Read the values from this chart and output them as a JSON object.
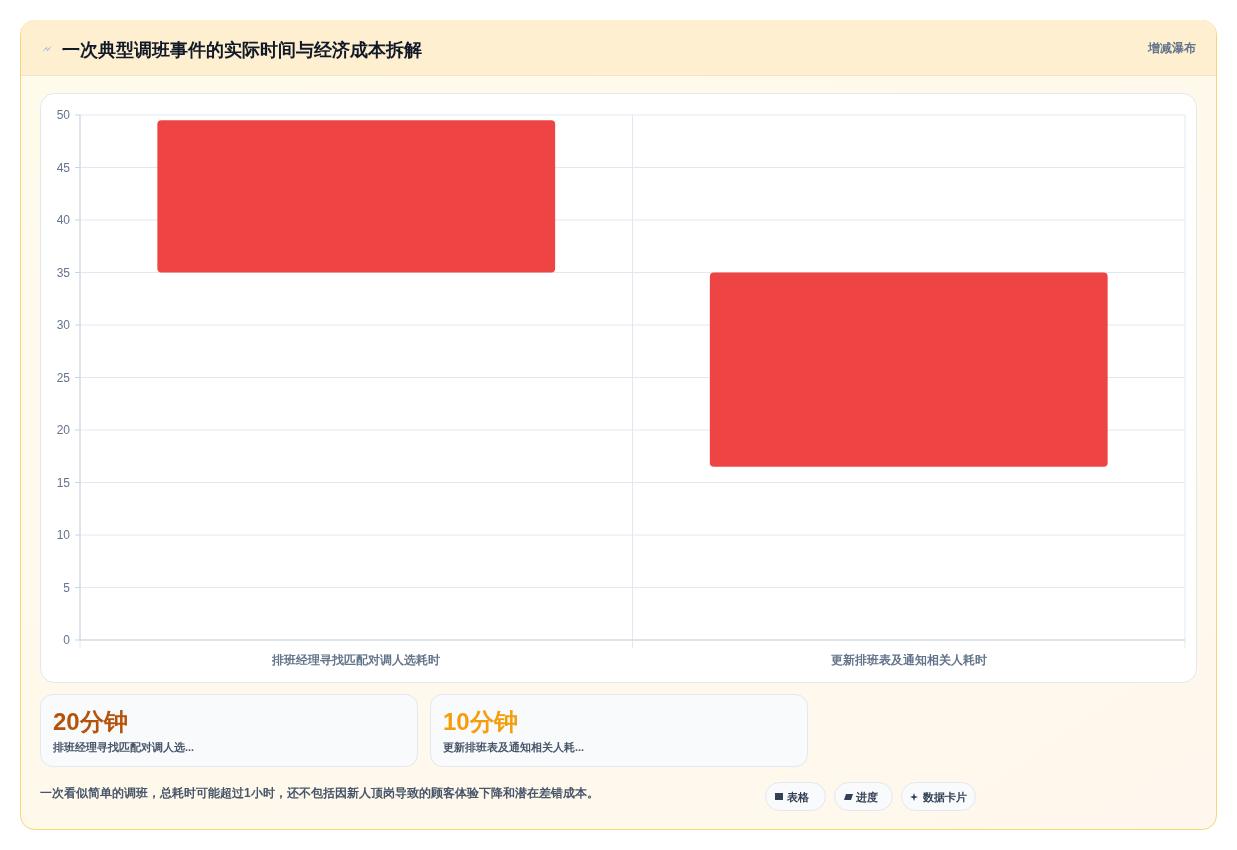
{
  "chart_data": {
    "type": "bar",
    "title": "一次典型调班事件的实际时间与经济成本拆解",
    "subtitle": "增减瀑布",
    "categories": [
      "排班经理寻找匹配对调人选耗时",
      "更新排班表及通知相关人耗时"
    ],
    "values": [
      14.5,
      18.5
    ],
    "base": [
      35,
      16.5
    ],
    "color": "#ef4444",
    "ylim": [
      0,
      50
    ],
    "yticks": [
      0,
      5,
      10,
      15,
      20,
      25,
      30,
      35,
      40,
      45,
      50
    ],
    "grid": true,
    "annotations": [
      "20分钟",
      "10分钟",
      "排班经理寻找匹配对调人选...",
      "更新排班表及通知相关人耗...",
      "一次看似简单的调班，总耗时可能超过1小时，还不包括因新人顶岗导致的顾客体验下降和潜在差错成本。",
      "表格",
      "进度",
      "数据卡片"
    ]
  }
}
